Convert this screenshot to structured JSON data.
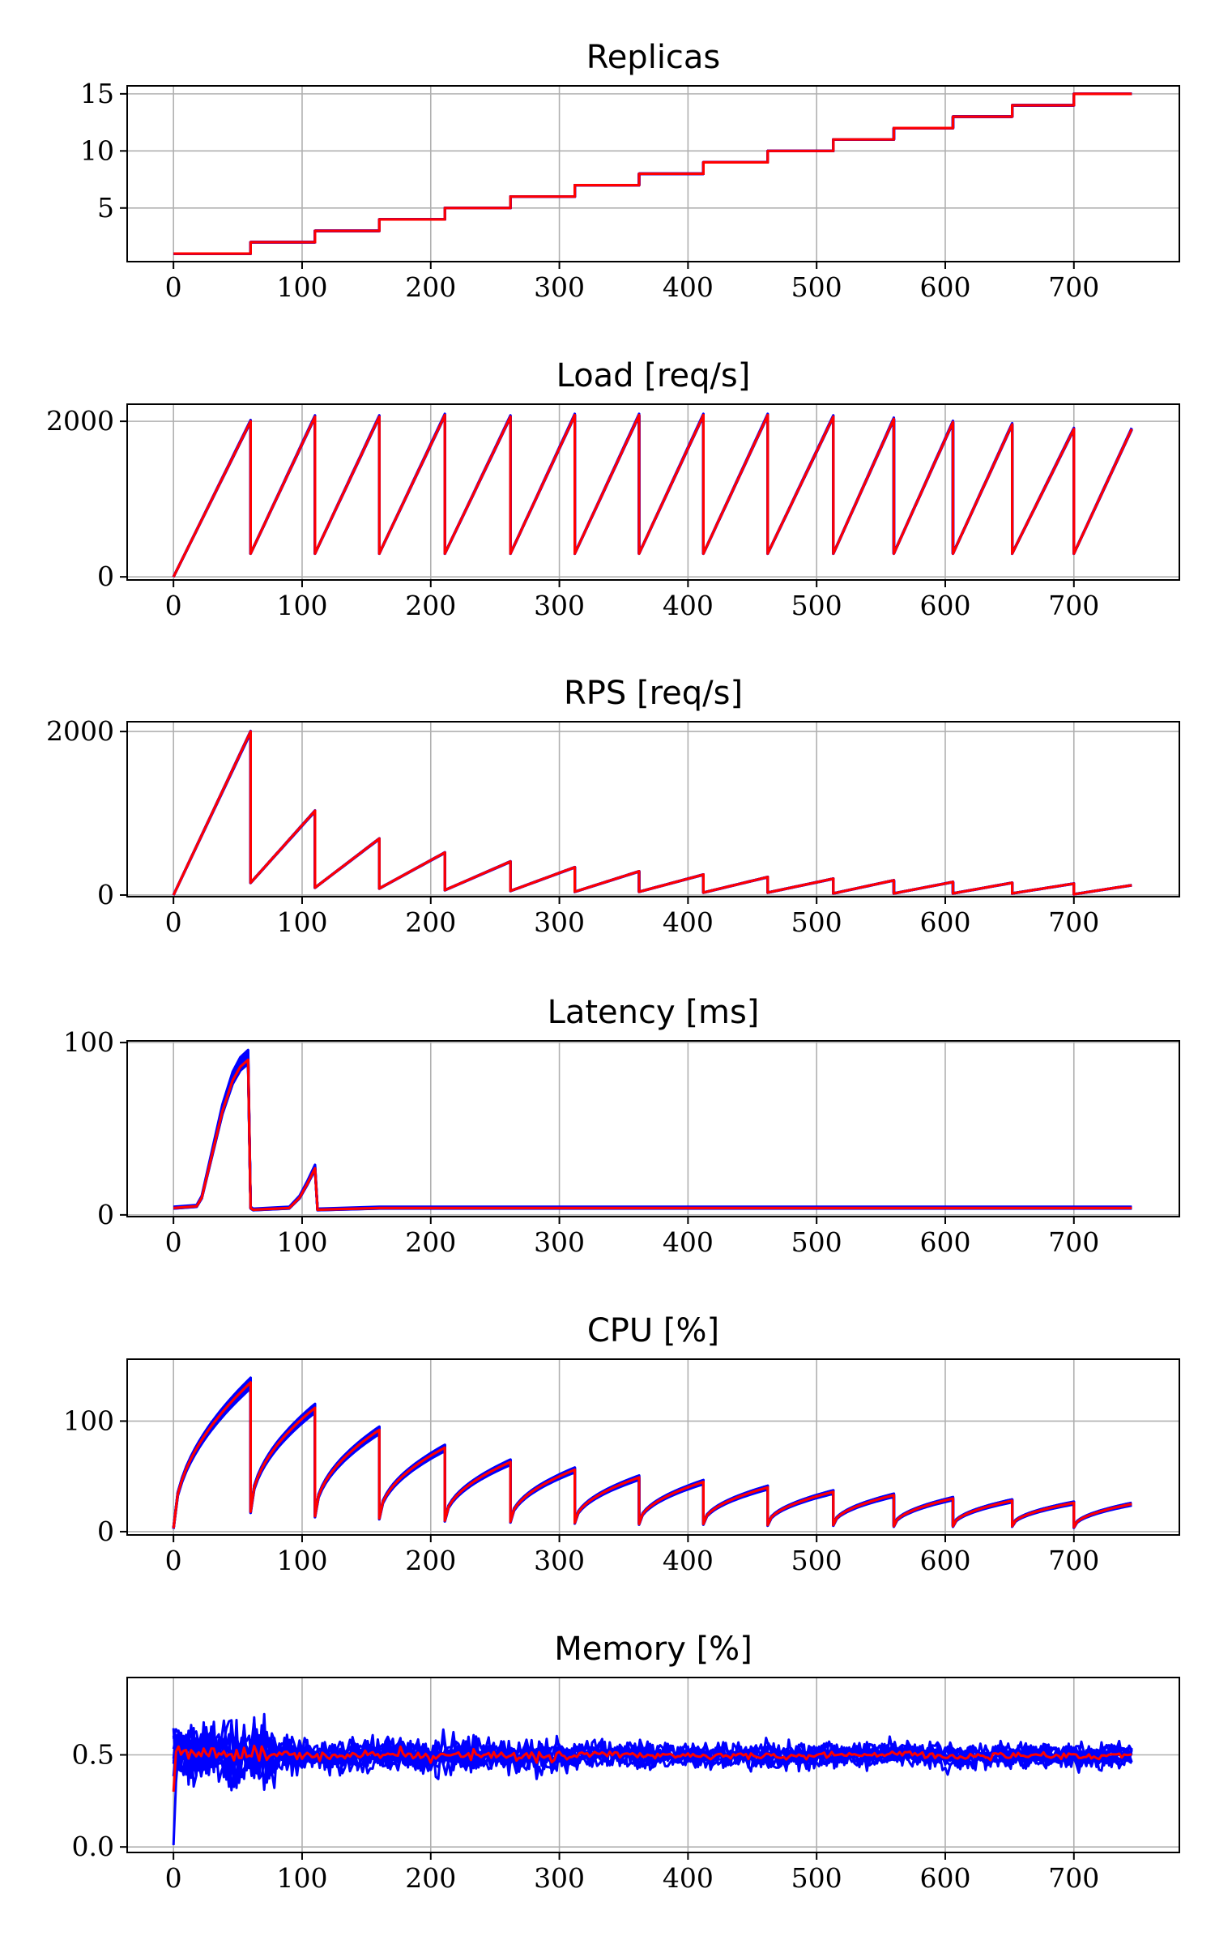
{
  "colors": {
    "runs": "#0000ff",
    "mean": "#ff0000",
    "grid": "#b0b0b0",
    "axes": "#000000"
  },
  "chart_data": [
    {
      "type": "line",
      "title": "Replicas",
      "grid": true,
      "xlim": [
        -36,
        782
      ],
      "ylim": [
        0.3,
        15.7
      ],
      "xticks": [
        0,
        100,
        200,
        300,
        400,
        500,
        600,
        700
      ],
      "yticks": [
        5,
        10,
        15
      ],
      "pattern": "steps",
      "step_times": [
        0,
        60,
        110,
        160,
        211,
        262,
        312,
        362,
        412,
        462,
        513,
        560,
        606,
        652,
        700,
        745
      ],
      "values": [
        1,
        2,
        3,
        4,
        5,
        6,
        7,
        8,
        9,
        10,
        11,
        12,
        13,
        14,
        15
      ],
      "runs": 10,
      "noise": 0,
      "wiggle": 0
    },
    {
      "type": "line",
      "title": "Load [req/s]",
      "grid": true,
      "xlim": [
        -36,
        782
      ],
      "ylim": [
        -40,
        2220
      ],
      "xticks": [
        0,
        100,
        200,
        300,
        400,
        500,
        600,
        700
      ],
      "yticks": [
        0,
        2000
      ],
      "pattern": "sawtooth",
      "step_times": [
        0,
        60,
        110,
        160,
        211,
        262,
        312,
        362,
        412,
        462,
        513,
        560,
        606,
        652,
        700,
        745
      ],
      "starts": [
        0,
        300,
        300,
        300,
        300,
        300,
        300,
        300,
        300,
        300,
        300,
        300,
        300,
        300,
        300
      ],
      "peaks": [
        2000,
        2060,
        2060,
        2080,
        2060,
        2080,
        2080,
        2080,
        2080,
        2060,
        2030,
        1990,
        1960,
        1900,
        1900
      ],
      "runs": 10,
      "noise": 18,
      "wiggle": 0
    },
    {
      "type": "line",
      "title": "RPS [req/s]",
      "grid": true,
      "xlim": [
        -36,
        782
      ],
      "ylim": [
        -20,
        2120
      ],
      "xticks": [
        0,
        100,
        200,
        300,
        400,
        500,
        600,
        700
      ],
      "yticks": [
        0,
        2000
      ],
      "pattern": "sawtooth",
      "step_times": [
        0,
        60,
        110,
        160,
        211,
        262,
        312,
        362,
        412,
        462,
        513,
        560,
        606,
        652,
        700,
        745
      ],
      "starts": [
        0,
        150,
        90,
        80,
        60,
        50,
        40,
        40,
        30,
        30,
        20,
        20,
        20,
        20,
        10
      ],
      "peaks": [
        2000,
        1030,
        690,
        520,
        410,
        340,
        290,
        250,
        220,
        200,
        180,
        160,
        150,
        140,
        120
      ],
      "runs": 10,
      "noise": 14,
      "wiggle": 0
    },
    {
      "type": "line",
      "title": "Latency [ms]",
      "grid": true,
      "xlim": [
        -36,
        782
      ],
      "ylim": [
        -1,
        101
      ],
      "xticks": [
        0,
        100,
        200,
        300,
        400,
        500,
        600,
        700
      ],
      "yticks": [
        0,
        100
      ],
      "pattern": "points",
      "x": [
        0,
        18,
        22,
        30,
        38,
        46,
        52,
        58,
        60,
        62,
        90,
        98,
        104,
        110,
        112,
        160,
        745
      ],
      "y": [
        4,
        5,
        10,
        35,
        60,
        78,
        86,
        90,
        4,
        3,
        4,
        10,
        18,
        27,
        3,
        4,
        4
      ],
      "runs": 10,
      "noise": 4,
      "wiggle": 0
    },
    {
      "type": "line",
      "title": "CPU [%]",
      "grid": true,
      "xlim": [
        -36,
        782
      ],
      "ylim": [
        -3,
        156
      ],
      "xticks": [
        0,
        100,
        200,
        300,
        400,
        500,
        600,
        700
      ],
      "yticks": [
        0,
        100
      ],
      "pattern": "cpu",
      "step_times": [
        0,
        60,
        110,
        160,
        211,
        262,
        312,
        362,
        412,
        462,
        513,
        560,
        606,
        652,
        700,
        745
      ],
      "starts": [
        3,
        18,
        14,
        12,
        10,
        9,
        8,
        7,
        7,
        6,
        6,
        5,
        5,
        5,
        4
      ],
      "peaks": [
        135,
        112,
        92,
        76,
        63,
        56,
        49,
        45,
        40,
        36,
        33,
        30,
        28,
        26,
        25
      ],
      "runs": 10,
      "noise": 6,
      "wiggle": 0
    },
    {
      "type": "line",
      "title": "Memory [%]",
      "grid": true,
      "xlim": [
        -36,
        782
      ],
      "ylim": [
        -0.03,
        0.92
      ],
      "xticks": [
        0,
        100,
        200,
        300,
        400,
        500,
        600,
        700
      ],
      "yticks": [
        0.0,
        0.5
      ],
      "pattern": "noise",
      "mean": 0.5,
      "start": 0.3,
      "runs": 10,
      "noise": 0.12,
      "wiggle": 0.06
    }
  ]
}
